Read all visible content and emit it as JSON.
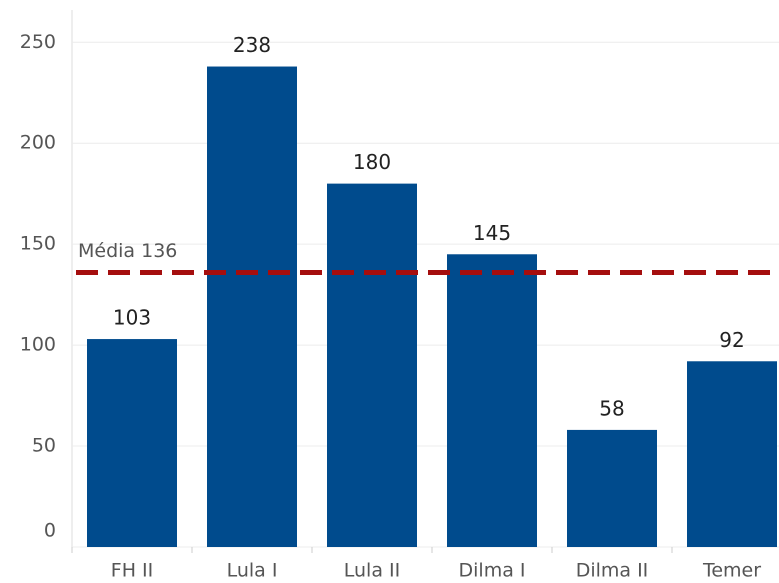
{
  "chart_data": {
    "type": "bar",
    "categories": [
      "FH II",
      "Lula I",
      "Lula II",
      "Dilma I",
      "Dilma II",
      "Temer"
    ],
    "values": [
      103,
      238,
      180,
      145,
      58,
      92
    ],
    "color": "#004b8d",
    "ylim": [
      0,
      266
    ],
    "yticks": [
      0,
      50,
      100,
      150,
      200,
      250
    ],
    "grid": true,
    "average": 136,
    "average_label": "Média 136",
    "average_color": "#a50e0e"
  }
}
